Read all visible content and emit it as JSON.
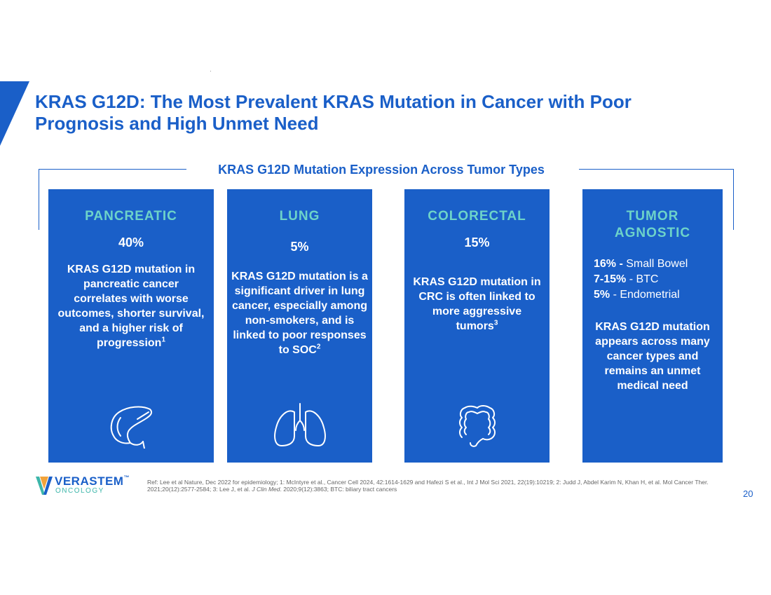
{
  "title": "KRAS G12D: The Most Prevalent KRAS Mutation in Cancer with Poor Prognosis and High Unmet Need",
  "section_title": "KRAS G12D Mutation Expression Across Tumor Types",
  "cards": [
    {
      "title": "PANCREATIC",
      "pct": "40%",
      "desc": "KRAS G12D mutation in pancreatic cancer correlates with worse outcomes, shorter survival, and a higher risk of progression",
      "sup": "1",
      "icon": "pancreas-icon"
    },
    {
      "title": "LUNG",
      "pct": "5%",
      "desc": "KRAS G12D mutation is a significant driver in lung cancer, especially among non-smokers, and is linked to poor responses to SOC",
      "sup": "2",
      "icon": "lungs-icon"
    },
    {
      "title": "COLORECTAL",
      "pct": "15%",
      "desc": "KRAS G12D mutation in CRC is often linked to more aggressive tumors",
      "sup": "3",
      "icon": "colon-icon"
    },
    {
      "title_line1": "TUMOR",
      "title_line2": "AGNOSTIC",
      "stats": [
        {
          "pct": "16% -",
          "label": " Small Bowel"
        },
        {
          "pct": "7-15%",
          "label": " - BTC"
        },
        {
          "pct": "5%",
          "label": " - Endometrial"
        }
      ],
      "desc": "KRAS G12D mutation appears across many cancer types and remains an unmet medical need"
    }
  ],
  "logo": {
    "name": "VERASTEM",
    "tm": "™",
    "sub": "ONCOLOGY"
  },
  "reference": {
    "part1": "Ref: Lee et al Nature, Dec 2022 for epidemiology; 1: McIntyre et al., Cancer Cell 2024, 42:1614-1629 and Hafezi S et al., Int J Mol Sci 2021, 22(19):10219; 2: Judd J, Abdel Karim N, Khan H, et al. Mol Cancer Ther. 2021;20(12):2577-2584; 3: Lee J, et al. ",
    "journal": "J Clin Med",
    "part2": ". 2020;9(12):3863; BTC: biliary tract cancers"
  },
  "page_number": "20",
  "colors": {
    "primary": "#1a5fc8",
    "teal": "#6dd3c9"
  }
}
